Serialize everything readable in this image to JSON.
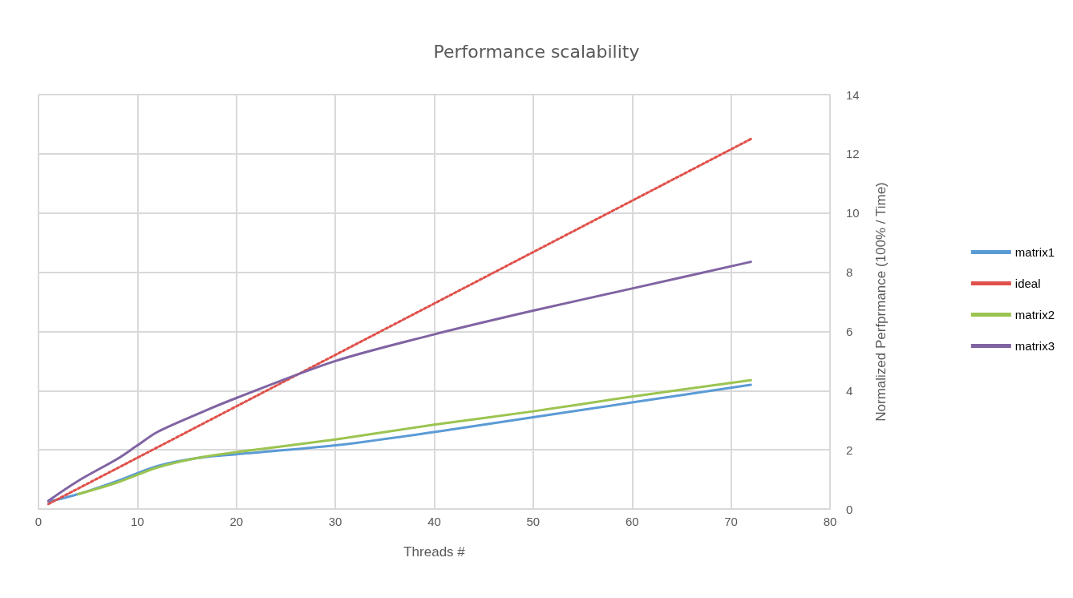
{
  "chart_data": {
    "type": "line",
    "title": "Performance scalability",
    "xlabel": "Threads #",
    "ylabel": "Normalized Perfprmance (100% / Time)",
    "xlim": [
      0,
      80
    ],
    "xticks": [
      0,
      10,
      20,
      30,
      40,
      50,
      60,
      70,
      80
    ],
    "ylim": [
      0,
      14
    ],
    "yticks": [
      0,
      2,
      4,
      6,
      8,
      10,
      12,
      14
    ],
    "grid": true,
    "legend": "right",
    "marker": "none",
    "series": [
      {
        "name": "matrix1",
        "color": "#5b9bd5",
        "x": [
          1,
          4,
          8,
          12,
          16,
          20,
          30,
          40,
          50,
          60,
          72
        ],
        "values": [
          0.25,
          0.5,
          0.95,
          1.45,
          1.72,
          1.85,
          2.15,
          2.6,
          3.1,
          3.6,
          4.2
        ]
      },
      {
        "name": "ideal",
        "color": "#e0504a",
        "line_style": "dotted",
        "x": [
          1,
          72
        ],
        "values": [
          0.17,
          12.5
        ]
      },
      {
        "name": "matrix2",
        "color": "#9bc450",
        "x": [
          4,
          8,
          12,
          16,
          20,
          30,
          40,
          50,
          60,
          72
        ],
        "values": [
          0.5,
          0.9,
          1.4,
          1.72,
          1.92,
          2.35,
          2.85,
          3.3,
          3.8,
          4.35
        ]
      },
      {
        "name": "matrix3",
        "color": "#8064a2",
        "x": [
          1,
          4,
          8,
          10,
          12,
          16,
          20,
          30,
          40,
          50,
          60,
          72
        ],
        "values": [
          0.28,
          0.95,
          1.7,
          2.15,
          2.6,
          3.2,
          3.75,
          5.0,
          5.9,
          6.7,
          7.45,
          8.35
        ]
      }
    ]
  }
}
